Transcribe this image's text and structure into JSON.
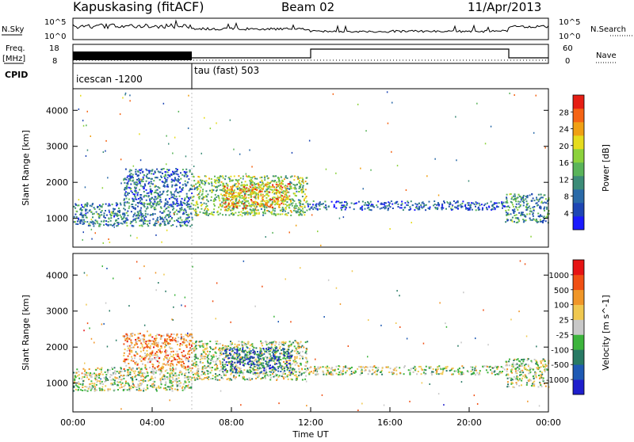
{
  "header": {
    "station": "Kapuskasing (fitACF)",
    "beam": "Beam 02",
    "date": "11/Apr/2013"
  },
  "nsky_panel": {
    "left_label": "N.Sky",
    "right_label": "N.Search",
    "ticks": [
      "10^5",
      "10^0"
    ]
  },
  "freq_panel": {
    "left_label_top": "Freq.",
    "left_label_bottom": "[MHz]",
    "right_label": "Nave",
    "left_ticks": [
      18,
      8
    ],
    "right_ticks": [
      60,
      0
    ]
  },
  "cpid": {
    "label": "CPID",
    "segments": [
      {
        "name": "icescan -1200",
        "start_hour": 0,
        "end_hour": 6
      },
      {
        "name": "tau (fast) 503",
        "start_hour": 6,
        "end_hour": 24
      }
    ]
  },
  "time_axis": {
    "label": "Time UT",
    "tick_labels": [
      "00:00",
      "04:00",
      "08:00",
      "12:00",
      "16:00",
      "20:00",
      "00:00"
    ]
  },
  "chart_data": [
    {
      "type": "heatmap",
      "ylabel": "Slant Range [km]",
      "y_tick_labels": [
        "1000",
        "2000",
        "3000",
        "4000"
      ],
      "xlim": [
        0,
        24
      ],
      "ylim": [
        200,
        4600
      ],
      "colorbar": {
        "label": "Power [dB]",
        "range": [
          0,
          32
        ],
        "tick_labels": [
          "4",
          "8",
          "12",
          "16",
          "20",
          "24",
          "28"
        ],
        "colors": [
          "#1a1aff",
          "#1e46b4",
          "#2a6aa8",
          "#3c8c78",
          "#5ab45a",
          "#8cd23c",
          "#e6dc1e",
          "#f0a014",
          "#f56414",
          "#e61e14"
        ]
      },
      "regions": [
        {
          "t0": 0,
          "t1": 6,
          "r0": 800,
          "r1": 1450,
          "level": 0.3
        },
        {
          "t0": 2.5,
          "t1": 6,
          "r0": 1400,
          "r1": 2400,
          "level": 0.25
        },
        {
          "t0": 6,
          "t1": 11.8,
          "r0": 1100,
          "r1": 2200,
          "level": 0.5
        },
        {
          "t0": 7.5,
          "t1": 11,
          "r0": 1300,
          "r1": 2000,
          "level": 0.75
        },
        {
          "t0": 11.8,
          "t1": 21.8,
          "r0": 1250,
          "r1": 1500,
          "level": 0.2
        },
        {
          "t0": 21.8,
          "t1": 24,
          "r0": 900,
          "r1": 1700,
          "level": 0.35
        }
      ]
    },
    {
      "type": "heatmap",
      "ylabel": "Slant Range [km]",
      "y_tick_labels": [
        "1000",
        "2000",
        "3000",
        "4000"
      ],
      "xlim": [
        0,
        24
      ],
      "ylim": [
        200,
        4600
      ],
      "colorbar": {
        "label": "Velocity [m s^-1]",
        "range": [
          -1500,
          1500
        ],
        "tick_labels": [
          "1000",
          "500",
          "100",
          "25",
          "-25",
          "-100",
          "-500",
          "-1000"
        ],
        "colors": [
          "#1e1ecc",
          "#1e5ab4",
          "#287a64",
          "#3cb43c",
          "#c8c8c8",
          "#f0c850",
          "#f09628",
          "#f05014",
          "#e61414"
        ]
      },
      "regions": [
        {
          "t0": 0,
          "t1": 6,
          "r0": 800,
          "r1": 1450,
          "level": 0.5
        },
        {
          "t0": 2.5,
          "t1": 6,
          "r0": 1400,
          "r1": 2400,
          "level": 0.7
        },
        {
          "t0": 6,
          "t1": 11.8,
          "r0": 1100,
          "r1": 2200,
          "level": 0.5
        },
        {
          "t0": 7.5,
          "t1": 11,
          "r0": 1300,
          "r1": 2000,
          "level": 0.2
        },
        {
          "t0": 11.8,
          "t1": 21.8,
          "r0": 1250,
          "r1": 1500,
          "level": 0.5
        },
        {
          "t0": 21.8,
          "t1": 24,
          "r0": 900,
          "r1": 1700,
          "level": 0.5
        }
      ]
    }
  ]
}
